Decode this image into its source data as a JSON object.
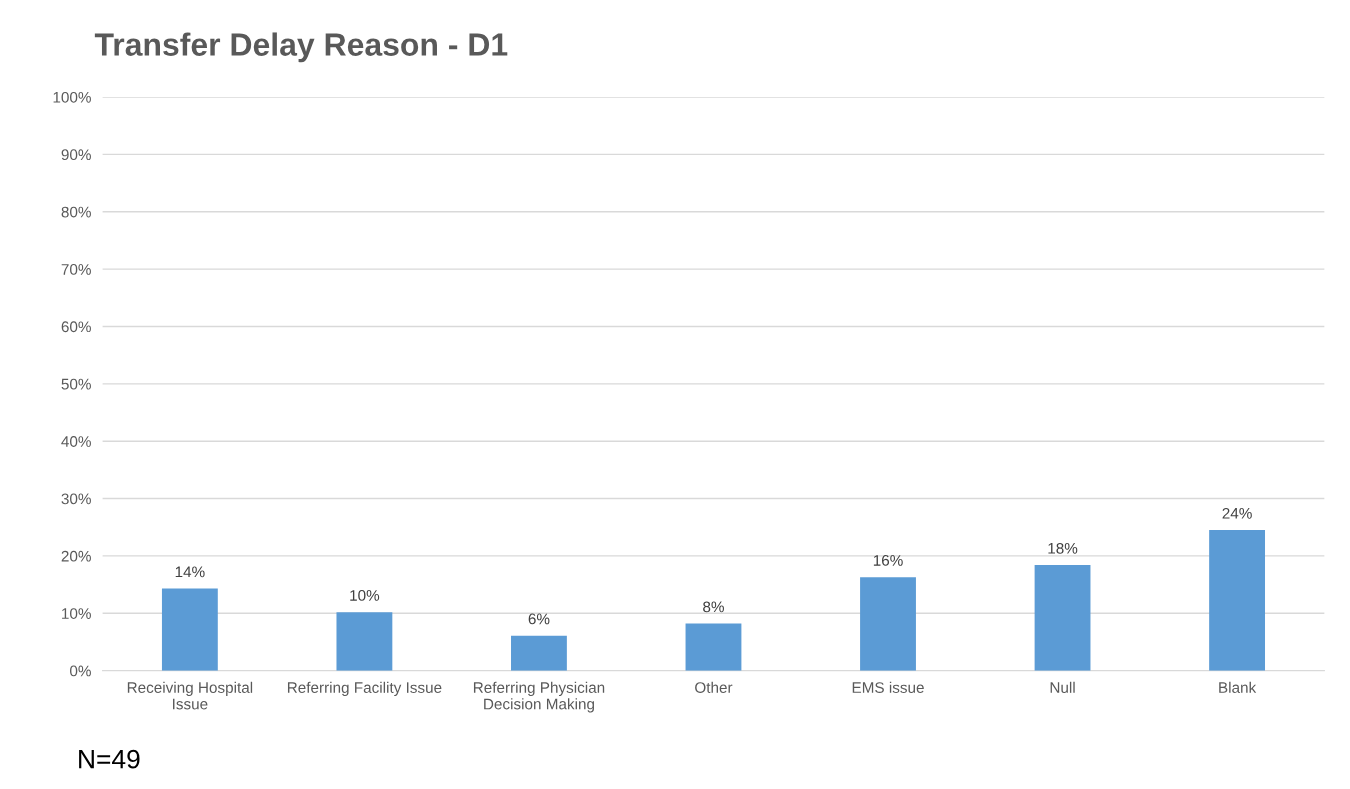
{
  "chart_data": {
    "type": "bar",
    "title": "Transfer Delay Reason - D1",
    "categories": [
      "Receiving Hospital\nIssue",
      "Referring Facility Issue",
      "Referring Physician\nDecision Making",
      "Other",
      "EMS issue",
      "Null",
      "Blank"
    ],
    "values": [
      14.3,
      10.2,
      6.1,
      8.2,
      16.3,
      18.4,
      24.5
    ],
    "value_labels": [
      "14%",
      "10%",
      "6%",
      "8%",
      "16%",
      "18%",
      "24%"
    ],
    "color": "#5b9bd5",
    "ylim": [
      0,
      100
    ],
    "yticks": [
      {
        "value": 0,
        "label": "0%"
      },
      {
        "value": 10,
        "label": "10%"
      },
      {
        "value": 20,
        "label": "20%"
      },
      {
        "value": 30,
        "label": "30%"
      },
      {
        "value": 40,
        "label": "40%"
      },
      {
        "value": 50,
        "label": "50%"
      },
      {
        "value": 60,
        "label": "60%"
      },
      {
        "value": 70,
        "label": "70%"
      },
      {
        "value": 80,
        "label": "80%"
      },
      {
        "value": 90,
        "label": "90%"
      },
      {
        "value": 100,
        "label": "100%"
      }
    ],
    "grid": "y",
    "annotations": [
      "N=49"
    ]
  }
}
